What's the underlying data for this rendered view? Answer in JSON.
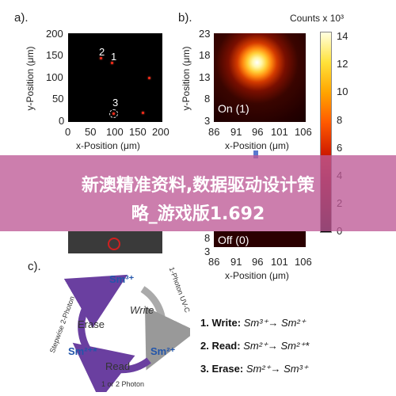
{
  "panel_a": {
    "letter": "a).",
    "xlabel": "x-Position (μm)",
    "ylabel": "y-Position (μm)",
    "xticks": [
      "0",
      "50",
      "100",
      "150",
      "200"
    ],
    "yticks": [
      "200",
      "150",
      "100",
      "50",
      "0"
    ],
    "labels": [
      "2",
      "1",
      "3"
    ]
  },
  "panel_b": {
    "letter": "b).",
    "counts_label": "Counts x 10³",
    "xlabel": "x-Position (μm)",
    "ylabel": "y-Position (μm)",
    "xticks": [
      "86",
      "91",
      "96",
      "101",
      "106"
    ],
    "yticks": [
      "23",
      "18",
      "13",
      "8",
      "3"
    ],
    "state_on": "On (1)",
    "state_off": "Off (0)",
    "colorbar_ticks": [
      "14",
      "12",
      "10",
      "8",
      "6",
      "4",
      "2",
      "0"
    ]
  },
  "panel_b_lower": {
    "xticks": [
      "86",
      "91",
      "96",
      "101",
      "106"
    ],
    "ytick_bottom": "3",
    "ytick_partial": "8",
    "xlabel": "x-Position (μm)"
  },
  "banner": {
    "line1": "新澳精准资料,数据驱动设计策",
    "line2": "略_游戏版1.692"
  },
  "panel_c": {
    "letter": "c).",
    "cycle": {
      "top": "Sm³⁺",
      "left": "Sm²⁺*",
      "right": "Sm²⁺",
      "write": "Write",
      "erase": "Erase",
      "read": "Read",
      "arc_left": "Stepwise 2-Photon",
      "arc_right": "1-Photon UV-C",
      "arc_bottom": "1 or 2 Photon"
    },
    "steps": [
      {
        "label": "1. Write:",
        "eq": "Sm³⁺→ Sm²⁺"
      },
      {
        "label": "2. Read:",
        "eq": "Sm²⁺→ Sm²⁺*"
      },
      {
        "label": "3. Erase:",
        "eq": "Sm²⁺→ Sm³⁺"
      }
    ]
  },
  "colors": {
    "banner": "#be5a96",
    "arrow_purple": "#6a3fa0",
    "arrow_gray": "#aaaaaa",
    "sm_blue": "#2255aa"
  }
}
